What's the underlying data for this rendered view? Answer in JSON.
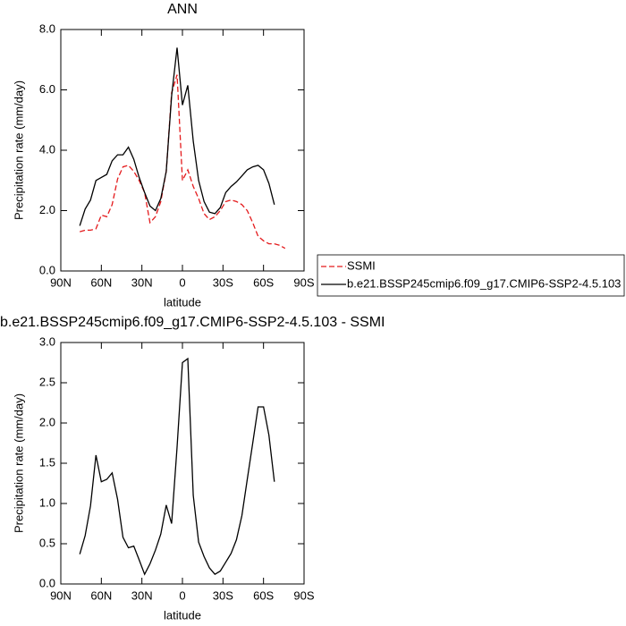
{
  "chart_data": [
    {
      "type": "line",
      "title": "ANN",
      "xlabel": "latitude",
      "ylabel": "Precipitation rate (mm/day)",
      "x": [
        76,
        72,
        68,
        64,
        60,
        56,
        52,
        48,
        44,
        40,
        36,
        32,
        28,
        24,
        20,
        16,
        12,
        8,
        4,
        0,
        -4,
        -8,
        -12,
        -16,
        -20,
        -24,
        -28,
        -32,
        -36,
        -40,
        -44,
        -48,
        -52,
        -56,
        -60,
        -64,
        -68,
        -72,
        -76
      ],
      "xlim": [
        90,
        -90
      ],
      "xticks": [
        {
          "value": 90,
          "label": "90N"
        },
        {
          "value": 60,
          "label": "60N"
        },
        {
          "value": 30,
          "label": "30N"
        },
        0,
        {
          "value": -30,
          "label": "30S"
        },
        {
          "value": -60,
          "label": "60S"
        },
        {
          "value": -90,
          "label": "90S"
        }
      ],
      "ylim": [
        0,
        8
      ],
      "yticks": [
        {
          "value": 0,
          "label": "0.0"
        },
        {
          "value": 2,
          "label": "2.0"
        },
        {
          "value": 4,
          "label": "4.0"
        },
        {
          "value": 6,
          "label": "6.0"
        },
        {
          "value": 8,
          "label": "8.0"
        }
      ],
      "legend": "right",
      "series": [
        {
          "name": "SSMI",
          "color": "#e41a1c",
          "dashed": true,
          "values": [
            1.3,
            1.35,
            1.35,
            1.4,
            1.85,
            1.8,
            2.2,
            3.05,
            3.45,
            3.5,
            3.3,
            3.0,
            2.6,
            1.6,
            1.8,
            2.3,
            3.3,
            5.9,
            6.5,
            3.0,
            3.35,
            2.8,
            2.4,
            1.9,
            1.7,
            1.8,
            2.0,
            2.3,
            2.35,
            2.3,
            2.2,
            2.0,
            1.6,
            1.15,
            1.0,
            0.9,
            0.9,
            0.85,
            0.75
          ]
        },
        {
          "name": "b.e21.BSSP245cmip6.f09_g17.CMIP6-SSP2-4.5.103",
          "color": "#000000",
          "dashed": false,
          "values": [
            1.5,
            2.05,
            2.35,
            3.0,
            3.1,
            3.2,
            3.65,
            3.85,
            3.85,
            4.1,
            3.7,
            3.1,
            2.6,
            2.15,
            2.0,
            2.4,
            3.3,
            5.8,
            7.4,
            5.5,
            6.15,
            4.3,
            3.0,
            2.3,
            1.95,
            1.9,
            2.1,
            2.6,
            2.8,
            2.95,
            3.15,
            3.35,
            3.45,
            3.5,
            3.35,
            2.9,
            2.2,
            null,
            null
          ]
        }
      ]
    },
    {
      "type": "line",
      "title": "b.e21.BSSP245cmip6.f09_g17.CMIP6-SSP2-4.5.103 - SSMI",
      "xlabel": "latitude",
      "ylabel": "Precipitation rate (mm/day)",
      "x": [
        76,
        72,
        68,
        64,
        60,
        56,
        52,
        48,
        44,
        40,
        36,
        32,
        28,
        24,
        20,
        16,
        12,
        8,
        4,
        0,
        -4,
        -8,
        -12,
        -16,
        -20,
        -24,
        -28,
        -32,
        -36,
        -40,
        -44,
        -48,
        -52,
        -56,
        -60,
        -64,
        -68,
        -72,
        -76
      ],
      "xlim": [
        90,
        -90
      ],
      "xticks": [
        {
          "value": 90,
          "label": "90N"
        },
        {
          "value": 60,
          "label": "60N"
        },
        {
          "value": 30,
          "label": "30N"
        },
        0,
        {
          "value": -30,
          "label": "30S"
        },
        {
          "value": -60,
          "label": "60S"
        },
        {
          "value": -90,
          "label": "90S"
        }
      ],
      "ylim": [
        0,
        3
      ],
      "yticks": [
        {
          "value": 0,
          "label": "0.0"
        },
        {
          "value": 0.5,
          "label": "0.5"
        },
        {
          "value": 1,
          "label": "1.0"
        },
        {
          "value": 1.5,
          "label": "1.5"
        },
        {
          "value": 2,
          "label": "2.0"
        },
        {
          "value": 2.5,
          "label": "2.5"
        },
        {
          "value": 3,
          "label": "3.0"
        }
      ],
      "series": [
        {
          "color": "#000000",
          "dashed": false,
          "values": [
            0.37,
            0.6,
            0.97,
            1.6,
            1.27,
            1.3,
            1.38,
            1.05,
            0.58,
            0.45,
            0.47,
            0.3,
            0.12,
            0.25,
            0.42,
            0.62,
            0.98,
            0.75,
            1.7,
            2.75,
            2.8,
            1.1,
            0.52,
            0.34,
            0.2,
            0.12,
            0.16,
            0.27,
            0.38,
            0.55,
            0.85,
            1.3,
            1.75,
            2.2,
            2.2,
            1.85,
            1.27,
            null,
            null
          ]
        }
      ]
    }
  ]
}
